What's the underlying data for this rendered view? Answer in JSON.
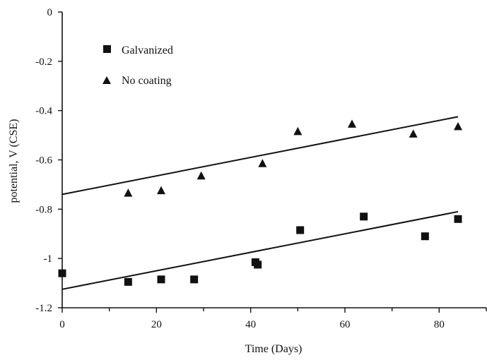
{
  "chart_data": {
    "type": "scatter",
    "title": "",
    "xlabel": "Time (Days)",
    "ylabel": "potential, V (CSE)",
    "xlim": [
      0,
      90
    ],
    "ylim": [
      -1.2,
      0
    ],
    "x_ticks": [
      0,
      20,
      40,
      60,
      80
    ],
    "x_tick_labels": [
      "0",
      "20",
      "40",
      "60",
      "80"
    ],
    "y_ticks": [
      0,
      -0.2,
      -0.4,
      -0.6,
      -0.8,
      -1,
      -1.2
    ],
    "y_tick_labels": [
      "0",
      "-0.2",
      "-0.4",
      "-0.6",
      "-0.8",
      "-1",
      "-1.2"
    ],
    "grid": false,
    "legend_position": "top-left",
    "series": [
      {
        "name": "Galvanized",
        "marker": "square",
        "color": "#111111",
        "x": [
          0,
          14,
          21,
          28,
          41,
          41.5,
          50.5,
          64,
          77,
          84
        ],
        "y": [
          -1.06,
          -1.095,
          -1.085,
          -1.085,
          -1.015,
          -1.025,
          -0.885,
          -0.83,
          -0.91,
          -0.84
        ],
        "trendline": {
          "x": [
            0,
            84
          ],
          "y": [
            -1.125,
            -0.81
          ]
        }
      },
      {
        "name": "No coating",
        "marker": "triangle",
        "color": "#111111",
        "x": [
          14,
          21,
          29.5,
          42.5,
          50,
          61.5,
          74.5,
          84
        ],
        "y": [
          -0.735,
          -0.725,
          -0.665,
          -0.615,
          -0.485,
          -0.455,
          -0.495,
          -0.465
        ],
        "trendline": {
          "x": [
            0,
            84
          ],
          "y": [
            -0.74,
            -0.425
          ]
        }
      }
    ]
  }
}
